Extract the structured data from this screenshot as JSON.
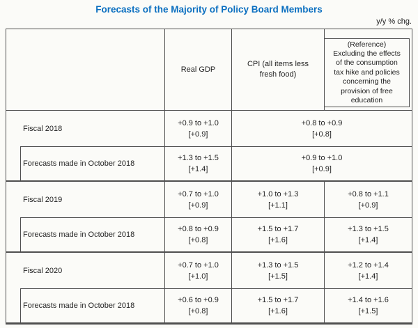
{
  "page": {
    "title": "Forecasts of the Majority of Policy Board Members",
    "unit_note": "y/y % chg.",
    "colors": {
      "title_blue": "#0b6fc0",
      "border_gray": "#4f4f4f",
      "background": "#fbfbf8"
    }
  },
  "table": {
    "header": {
      "real_gdp": "Real GDP",
      "cpi": "CPI (all items less\nfresh food)",
      "reference": "(Reference)\nExcluding the effects\nof the consumption\ntax hike and policies\nconcerning the\nprovision of free\neducation"
    },
    "groups": [
      {
        "label": "Fiscal 2018",
        "sub_label": "Forecasts made in October 2018",
        "main": {
          "gdp_range": "+0.9 to +1.0",
          "gdp_median": "[+0.9]",
          "cpi_range": "+0.8 to +0.9",
          "cpi_median": "[+0.8]"
        },
        "sub": {
          "gdp_range": "+1.3 to +1.5",
          "gdp_median": "[+1.4]",
          "cpi_range": "+0.9 to +1.0",
          "cpi_median": "[+0.9]"
        }
      },
      {
        "label": "Fiscal 2019",
        "sub_label": "Forecasts made in October 2018",
        "main": {
          "gdp_range": "+0.7 to +1.0",
          "gdp_median": "[+0.9]",
          "cpi_range": "+1.0 to +1.3",
          "cpi_median": "[+1.1]",
          "ref_range": "+0.8 to +1.1",
          "ref_median": "[+0.9]"
        },
        "sub": {
          "gdp_range": "+0.8 to +0.9",
          "gdp_median": "[+0.8]",
          "cpi_range": "+1.5 to +1.7",
          "cpi_median": "[+1.6]",
          "ref_range": "+1.3 to +1.5",
          "ref_median": "[+1.4]"
        }
      },
      {
        "label": "Fiscal 2020",
        "sub_label": "Forecasts made in October 2018",
        "main": {
          "gdp_range": "+0.7 to +1.0",
          "gdp_median": "[+1.0]",
          "cpi_range": "+1.3 to +1.5",
          "cpi_median": "[+1.5]",
          "ref_range": "+1.2 to +1.4",
          "ref_median": "[+1.4]"
        },
        "sub": {
          "gdp_range": "+0.6 to +0.9",
          "gdp_median": "[+0.8]",
          "cpi_range": "+1.5 to +1.7",
          "cpi_median": "[+1.6]",
          "ref_range": "+1.4 to +1.6",
          "ref_median": "[+1.5]"
        }
      }
    ]
  }
}
